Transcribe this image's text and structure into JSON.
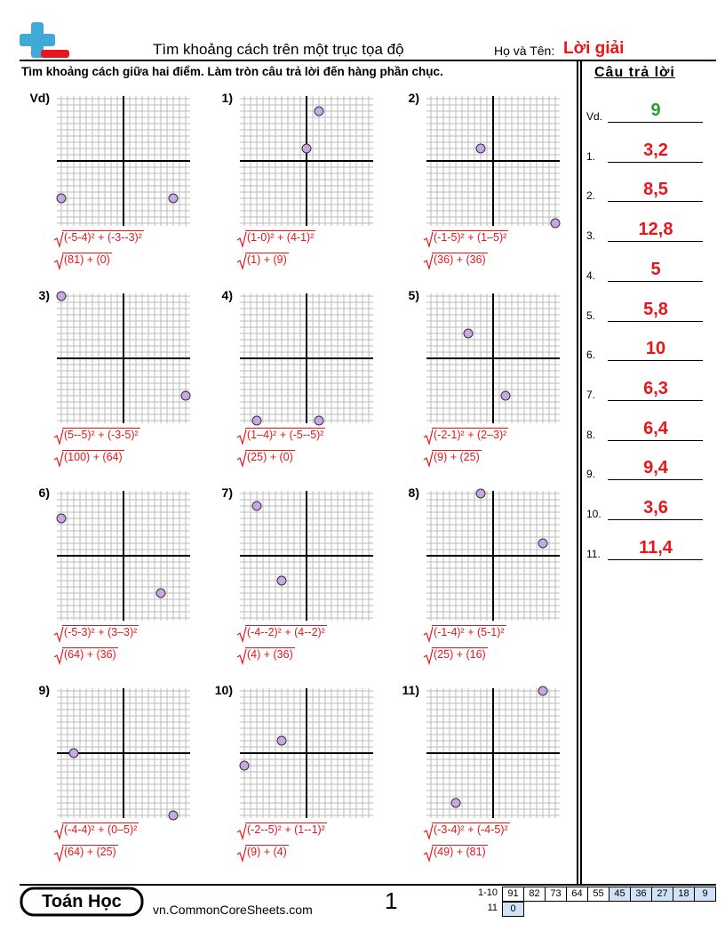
{
  "header": {
    "title": "Tìm khoảng cách trên một trục tọa độ",
    "name_label": "Họ và Tên:",
    "name_value": "Lời giải"
  },
  "instructions": "Tìm khoảng cách giữa hai điểm. Làm tròn câu trả lời đến hàng phần chục.",
  "answer_header": "Câu trả lời",
  "problems": [
    {
      "label": "Vd)",
      "points": [
        [
          -5,
          -3
        ],
        [
          4,
          -3
        ]
      ],
      "formula": "(-5-4)² + (-3--3)²",
      "sum": "(81) + (0)"
    },
    {
      "label": "1)",
      "points": [
        [
          1,
          4
        ],
        [
          0,
          1
        ]
      ],
      "formula": "(1-0)² + (4-1)²",
      "sum": "(1) + (9)"
    },
    {
      "label": "2)",
      "points": [
        [
          -1,
          1
        ],
        [
          5,
          -5
        ]
      ],
      "formula": "(-1-5)² + (1–5)²",
      "sum": "(36) + (36)"
    },
    {
      "label": "3)",
      "points": [
        [
          5,
          -3
        ],
        [
          -5,
          5
        ]
      ],
      "formula": "(5--5)² + (-3-5)²",
      "sum": "(100) + (64)"
    },
    {
      "label": "4)",
      "points": [
        [
          1,
          -5
        ],
        [
          -4,
          -5
        ]
      ],
      "formula": "(1–4)² + (-5--5)²",
      "sum": "(25) + (0)"
    },
    {
      "label": "5)",
      "points": [
        [
          -2,
          2
        ],
        [
          1,
          -3
        ]
      ],
      "formula": "(-2-1)² + (2–3)²",
      "sum": "(9) + (25)"
    },
    {
      "label": "6)",
      "points": [
        [
          -5,
          3
        ],
        [
          3,
          -3
        ]
      ],
      "formula": "(-5-3)² + (3–3)²",
      "sum": "(64) + (36)"
    },
    {
      "label": "7)",
      "points": [
        [
          -4,
          4
        ],
        [
          -2,
          -2
        ]
      ],
      "formula": "(-4--2)² + (4--2)²",
      "sum": "(4) + (36)"
    },
    {
      "label": "8)",
      "points": [
        [
          -1,
          5
        ],
        [
          4,
          1
        ]
      ],
      "formula": "(-1-4)² + (5-1)²",
      "sum": "(25) + (16)"
    },
    {
      "label": "9)",
      "points": [
        [
          -4,
          0
        ],
        [
          4,
          -5
        ]
      ],
      "formula": "(-4-4)² + (0–5)²",
      "sum": "(64) + (25)"
    },
    {
      "label": "10)",
      "points": [
        [
          -2,
          1
        ],
        [
          -5,
          -1
        ]
      ],
      "formula": "(-2--5)² + (1--1)²",
      "sum": "(9) + (4)"
    },
    {
      "label": "11)",
      "points": [
        [
          -3,
          -4
        ],
        [
          4,
          5
        ]
      ],
      "formula": "(-3-4)² + (-4-5)²",
      "sum": "(49) + (81)"
    }
  ],
  "answers": [
    {
      "label": "Vd.",
      "value": "9"
    },
    {
      "label": "1.",
      "value": "3,2"
    },
    {
      "label": "2.",
      "value": "8,5"
    },
    {
      "label": "3.",
      "value": "12,8"
    },
    {
      "label": "4.",
      "value": "5"
    },
    {
      "label": "5.",
      "value": "5,8"
    },
    {
      "label": "6.",
      "value": "10"
    },
    {
      "label": "7.",
      "value": "6,3"
    },
    {
      "label": "8.",
      "value": "6,4"
    },
    {
      "label": "9.",
      "value": "9,4"
    },
    {
      "label": "10.",
      "value": "3,6"
    },
    {
      "label": "11.",
      "value": "11,4"
    }
  ],
  "footer": {
    "brand": "Toán Học",
    "url": "vn.CommonCoreSheets.com",
    "page": "1",
    "score_rows": [
      {
        "label": "1-10",
        "cells": [
          "91",
          "82",
          "73",
          "64",
          "55",
          "45",
          "36",
          "27",
          "18",
          "9"
        ]
      },
      {
        "label": "11",
        "cells": [
          "0"
        ]
      }
    ]
  }
}
